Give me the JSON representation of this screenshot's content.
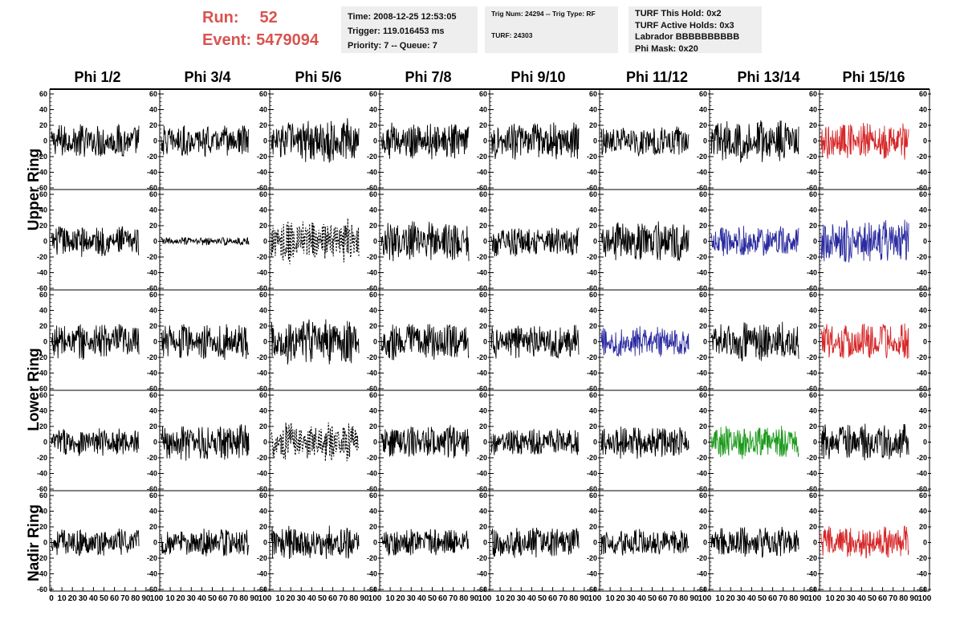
{
  "header": {
    "run_label": "Run:",
    "run_value": "52",
    "event_label": "Event:",
    "event_value": "5479094",
    "time_line": "Time: 2008-12-25 12:53:05",
    "trigger_line": "Trigger: 119.016453 ms",
    "priority_line": "Priority: 7 -- Queue: 7",
    "trig_line": "Trig Num: 24294 -- Trig Type: RF",
    "turf_line": "TURF: 24303",
    "turf_hold": "TURF This Hold: 0x2",
    "turf_active": "TURF Active Holds: 0x3",
    "labrador": "Labrador BBBBBBBBBB",
    "phi_mask": "Phi Mask: 0x20"
  },
  "columns": [
    "Phi 1/2",
    "Phi 3/4",
    "Phi 5/6",
    "Phi 7/8",
    "Phi 9/10",
    "Phi 11/12",
    "Phi 13/14",
    "Phi 15/16"
  ],
  "rings": [
    "Upper Ring",
    "Lower Ring",
    "Nadir Ring"
  ],
  "colors": {
    "trace_default": "#000000",
    "trace_red": "#d62728",
    "trace_blue": "#2a2aa0",
    "trace_green": "#1a9a1a",
    "header_red": "#d9534f",
    "box_bg": "#eeeeee"
  },
  "chart_data": {
    "type": "line",
    "ylim": [
      -60,
      60
    ],
    "xlim": [
      0,
      100
    ],
    "y_ticks": [
      "60",
      "40",
      "20",
      "0",
      "-20",
      "-40",
      "-60"
    ],
    "x_tick_label_row": [
      "0",
      "10",
      "20",
      "30",
      "40",
      "50",
      "60",
      "70",
      "80",
      "90",
      "100"
    ],
    "x_tick_label_row_first_panel": "0 10 20 30 40 50 60 70 80 90 100",
    "x_tick_label_row_other_panels": "10 20 30 40 50 60 70 80 90 100",
    "panels": [
      {
        "row": 0,
        "col": 0,
        "color": "black",
        "amplitude": 22,
        "style": "solid"
      },
      {
        "row": 0,
        "col": 1,
        "color": "black",
        "amplitude": 20,
        "style": "solid"
      },
      {
        "row": 0,
        "col": 2,
        "color": "black",
        "amplitude": 30,
        "style": "solid"
      },
      {
        "row": 0,
        "col": 3,
        "color": "black",
        "amplitude": 24,
        "style": "solid"
      },
      {
        "row": 0,
        "col": 4,
        "color": "black",
        "amplitude": 24,
        "style": "solid"
      },
      {
        "row": 0,
        "col": 5,
        "color": "black",
        "amplitude": 20,
        "style": "solid"
      },
      {
        "row": 0,
        "col": 6,
        "color": "black",
        "amplitude": 28,
        "style": "solid"
      },
      {
        "row": 0,
        "col": 7,
        "color": "red",
        "amplitude": 24,
        "style": "solid"
      },
      {
        "row": 1,
        "col": 0,
        "color": "black",
        "amplitude": 20,
        "style": "solid"
      },
      {
        "row": 1,
        "col": 1,
        "color": "black",
        "amplitude": 5,
        "style": "solid"
      },
      {
        "row": 1,
        "col": 2,
        "color": "black",
        "amplitude": 30,
        "style": "dashed"
      },
      {
        "row": 1,
        "col": 3,
        "color": "black",
        "amplitude": 26,
        "style": "solid"
      },
      {
        "row": 1,
        "col": 4,
        "color": "black",
        "amplitude": 20,
        "style": "solid"
      },
      {
        "row": 1,
        "col": 5,
        "color": "black",
        "amplitude": 26,
        "style": "solid"
      },
      {
        "row": 1,
        "col": 6,
        "color": "blue",
        "amplitude": 20,
        "style": "solid"
      },
      {
        "row": 1,
        "col": 7,
        "color": "blue",
        "amplitude": 28,
        "style": "solid"
      },
      {
        "row": 2,
        "col": 0,
        "color": "black",
        "amplitude": 24,
        "style": "solid"
      },
      {
        "row": 2,
        "col": 1,
        "color": "black",
        "amplitude": 24,
        "style": "solid"
      },
      {
        "row": 2,
        "col": 2,
        "color": "black",
        "amplitude": 30,
        "style": "solid"
      },
      {
        "row": 2,
        "col": 3,
        "color": "black",
        "amplitude": 24,
        "style": "solid"
      },
      {
        "row": 2,
        "col": 4,
        "color": "black",
        "amplitude": 22,
        "style": "solid"
      },
      {
        "row": 2,
        "col": 5,
        "color": "blue",
        "amplitude": 20,
        "style": "solid"
      },
      {
        "row": 2,
        "col": 6,
        "color": "black",
        "amplitude": 26,
        "style": "solid"
      },
      {
        "row": 2,
        "col": 7,
        "color": "red",
        "amplitude": 24,
        "style": "solid"
      },
      {
        "row": 3,
        "col": 0,
        "color": "black",
        "amplitude": 18,
        "style": "solid"
      },
      {
        "row": 3,
        "col": 1,
        "color": "black",
        "amplitude": 24,
        "style": "solid"
      },
      {
        "row": 3,
        "col": 2,
        "color": "black",
        "amplitude": 26,
        "style": "dashed"
      },
      {
        "row": 3,
        "col": 3,
        "color": "black",
        "amplitude": 22,
        "style": "solid"
      },
      {
        "row": 3,
        "col": 4,
        "color": "black",
        "amplitude": 18,
        "style": "solid"
      },
      {
        "row": 3,
        "col": 5,
        "color": "black",
        "amplitude": 22,
        "style": "solid"
      },
      {
        "row": 3,
        "col": 6,
        "color": "green",
        "amplitude": 22,
        "style": "solid"
      },
      {
        "row": 3,
        "col": 7,
        "color": "black",
        "amplitude": 24,
        "style": "solid"
      },
      {
        "row": 4,
        "col": 0,
        "color": "black",
        "amplitude": 18,
        "style": "solid"
      },
      {
        "row": 4,
        "col": 1,
        "color": "black",
        "amplitude": 18,
        "style": "solid"
      },
      {
        "row": 4,
        "col": 2,
        "color": "black",
        "amplitude": 22,
        "style": "solid"
      },
      {
        "row": 4,
        "col": 3,
        "color": "black",
        "amplitude": 18,
        "style": "solid"
      },
      {
        "row": 4,
        "col": 4,
        "color": "black",
        "amplitude": 20,
        "style": "solid"
      },
      {
        "row": 4,
        "col": 5,
        "color": "black",
        "amplitude": 18,
        "style": "solid"
      },
      {
        "row": 4,
        "col": 6,
        "color": "black",
        "amplitude": 20,
        "style": "solid"
      },
      {
        "row": 4,
        "col": 7,
        "color": "red",
        "amplitude": 22,
        "style": "solid"
      }
    ]
  }
}
